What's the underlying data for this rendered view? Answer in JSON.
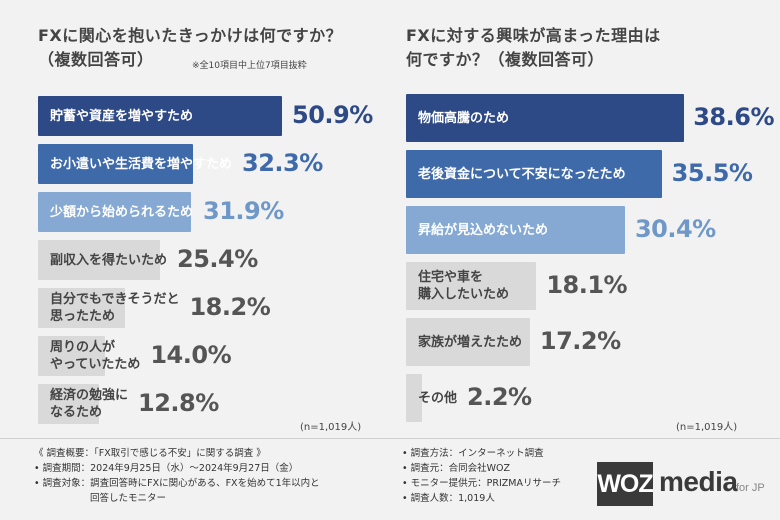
{
  "chart_data": [
    {
      "type": "bar",
      "orientation": "horizontal",
      "title": "FXに関心を抱いたきっかけは何ですか？（複数回答可）",
      "title_lines": [
        "FXに関心を抱いたきっかけは何ですか？",
        "（複数回答可）"
      ],
      "note": "※全10項目中上位7項目抜粋",
      "sample_note": "(n=1,019人)",
      "unit": "%",
      "xlim": [
        0,
        100
      ],
      "categories": [
        "貯蓄や資産を増やすため",
        "お小遣いや生活費を増やすため",
        "少額から始められるため",
        "副収入を得たいため",
        "自分でもできそうだと思ったため",
        "周りの人がやっていたため",
        "経済の勉強になるため"
      ],
      "category_lines": [
        [
          "貯蓄や資産を増やすため"
        ],
        [
          "お小遣いや生活費を増やすため"
        ],
        [
          "少額から始められるため"
        ],
        [
          "副収入を得たいため"
        ],
        [
          "自分でもできそうだと",
          "思ったため"
        ],
        [
          "周りの人が",
          "やっていたため"
        ],
        [
          "経済の勉強に",
          "なるため"
        ]
      ],
      "values": [
        50.9,
        32.3,
        31.9,
        25.4,
        18.2,
        14.0,
        12.8
      ],
      "value_labels": [
        "50.9%",
        "32.3%",
        "31.9%",
        "25.4%",
        "18.2%",
        "14.0%",
        "12.8%"
      ],
      "bar_colors": [
        "#2e4a86",
        "#3f6aaa",
        "#85a9d2",
        "#d9d9d9",
        "#d9d9d9",
        "#d9d9d9",
        "#d9d9d9"
      ],
      "label_colors": [
        "#ffffff",
        "#ffffff",
        "#ffffff",
        "#444444",
        "#444444",
        "#444444",
        "#444444"
      ],
      "value_colors": [
        "#2e4a86",
        "#3f6aaa",
        "#6f98c8",
        "#555555",
        "#555555",
        "#555555",
        "#555555"
      ]
    },
    {
      "type": "bar",
      "orientation": "horizontal",
      "title": "FXに対する興味が高まった理由は何ですか？（複数回答可）",
      "title_lines": [
        "FXに対する興味が高まった理由は",
        "何ですか？（複数回答可）"
      ],
      "sample_note": "(n=1,019人)",
      "unit": "%",
      "xlim": [
        0,
        100
      ],
      "categories": [
        "物価高騰のため",
        "老後資金について不安になったため",
        "昇給が見込めないため",
        "住宅や車を購入したいため",
        "家族が増えたため",
        "その他"
      ],
      "category_lines": [
        [
          "物価高騰のため"
        ],
        [
          "老後資金について不安になったため"
        ],
        [
          "昇給が見込めないため"
        ],
        [
          "住宅や車を",
          "購入したいため"
        ],
        [
          "家族が増えたため"
        ],
        [
          "その他"
        ]
      ],
      "values": [
        38.6,
        35.5,
        30.4,
        18.1,
        17.2,
        2.2
      ],
      "value_labels": [
        "38.6%",
        "35.5%",
        "30.4%",
        "18.1%",
        "17.2%",
        "2.2%"
      ],
      "bar_colors": [
        "#2e4a86",
        "#3f6aaa",
        "#85a9d2",
        "#d9d9d9",
        "#d9d9d9",
        "#d9d9d9"
      ],
      "label_colors": [
        "#ffffff",
        "#ffffff",
        "#ffffff",
        "#444444",
        "#444444",
        "#444444"
      ],
      "value_colors": [
        "#2e4a86",
        "#3f6aaa",
        "#6f98c8",
        "#555555",
        "#555555",
        "#555555"
      ]
    }
  ],
  "footer": {
    "left": [
      "《 調査概要：「FX取引で感じる不安」に関する調査 》",
      "• 調査期間：2024年9月25日（水）～2024年9月27日（金）",
      "• 調査対象：調査回答時にFXに関心がある、FXを始めて1年以内と",
      "回答したモニター"
    ],
    "right": [
      "• 調査方法：インターネット調査",
      "• 調査元：合同会社WOZ",
      "• モニター提供元：PRIZMAリサーチ",
      "• 調査人数：1,019人"
    ]
  },
  "logo": {
    "box": "WOZ",
    "media": "media",
    "suffix": "for JP"
  }
}
